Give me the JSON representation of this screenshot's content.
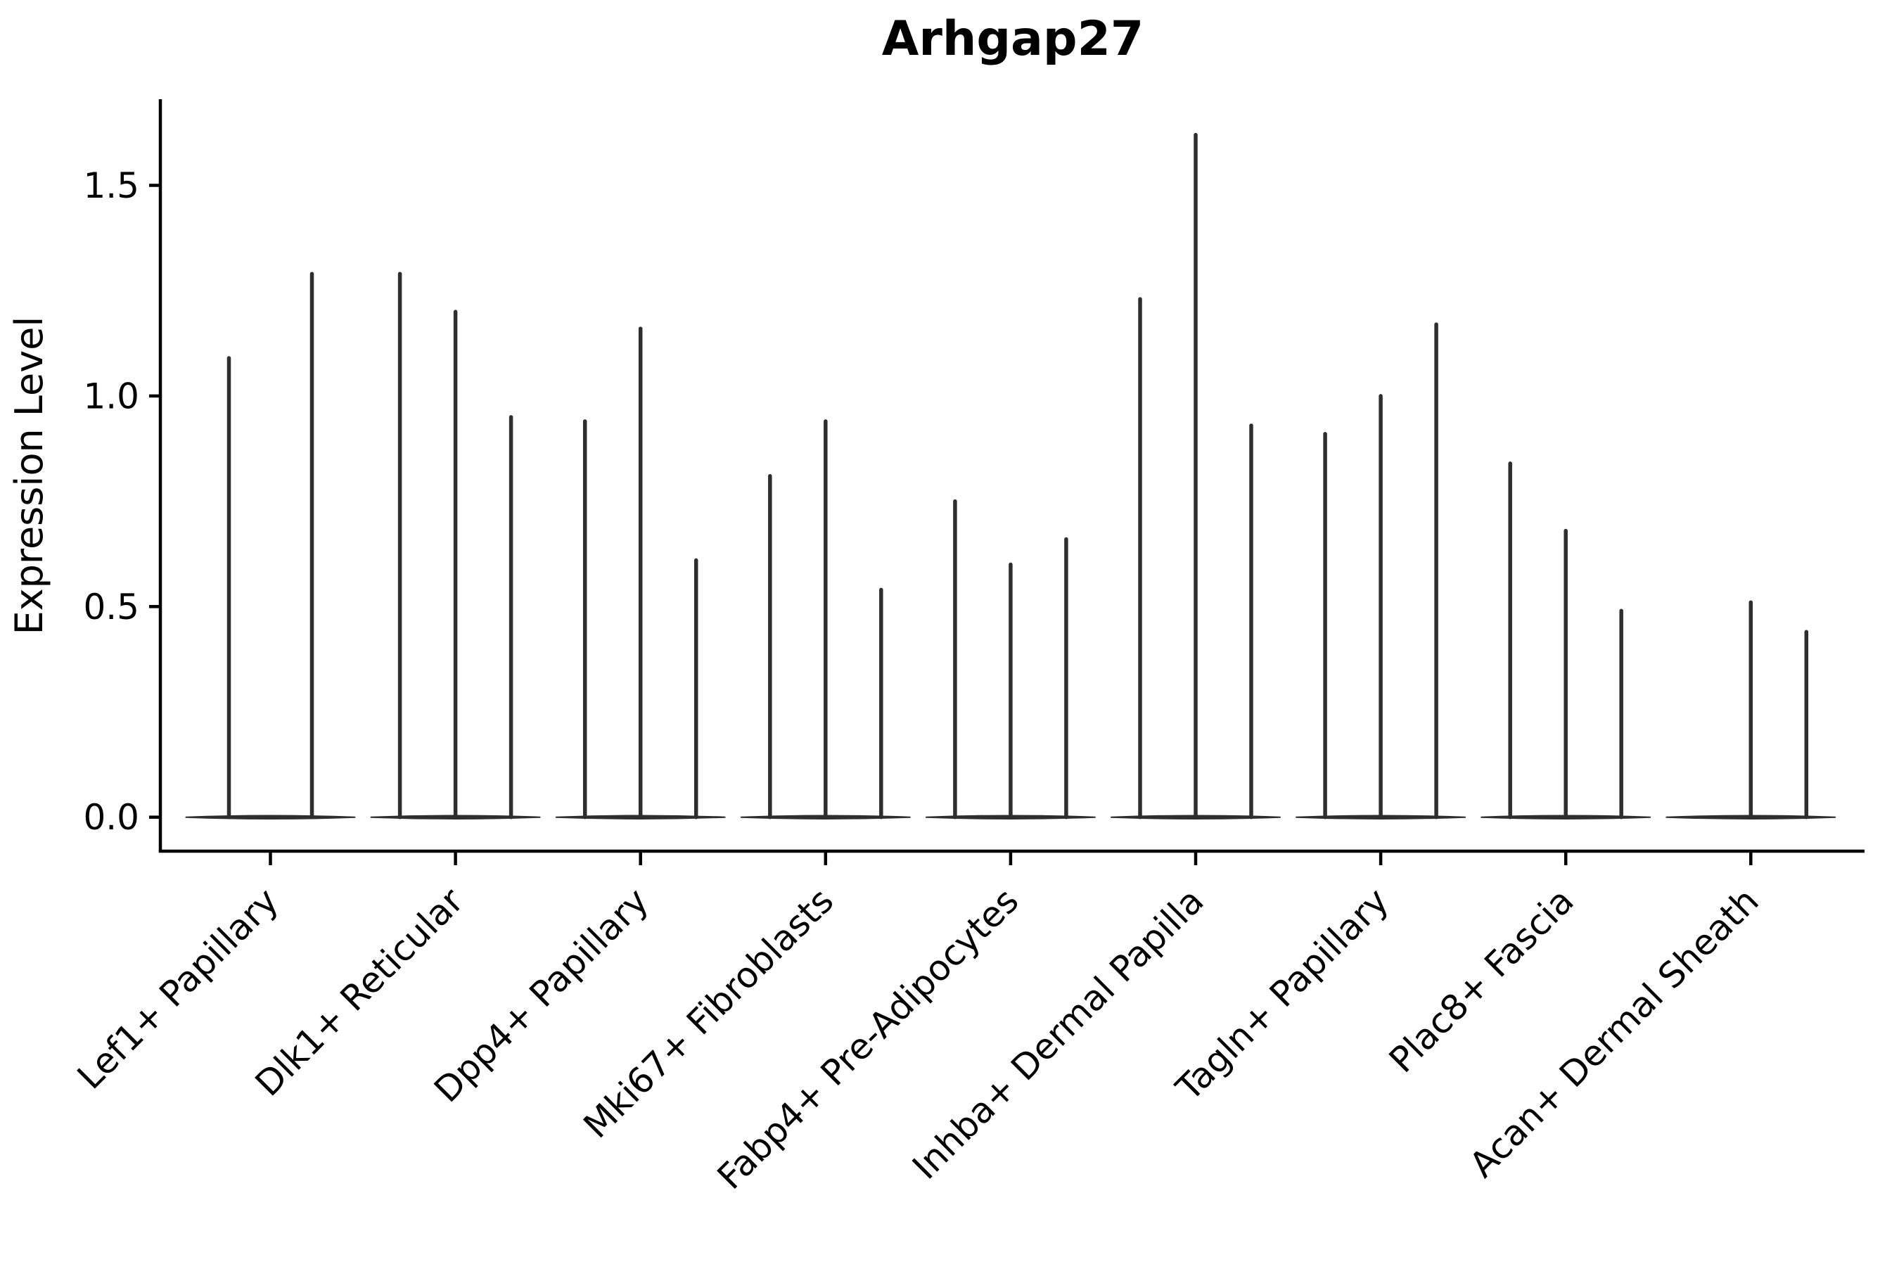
{
  "title": "Arhgap27",
  "ylabel": "Expression Level",
  "colors": {
    "violin": "#2e2e2e",
    "axis": "#000000",
    "background": "#ffffff"
  },
  "chart_data": {
    "type": "violin",
    "title": "Arhgap27",
    "xlabel": "",
    "ylabel": "Expression Level",
    "grid": false,
    "legend": "none",
    "ylim": [
      -0.08,
      1.69
    ],
    "yticks": [
      0.0,
      0.5,
      1.0,
      1.5
    ],
    "ytick_labels": [
      "0.0",
      "0.5",
      "1.0",
      "1.5"
    ],
    "description": "Stacked narrow violins per cell type; each violin is a dense mass at 0 expression with a thin spike reaching its maximum expression value",
    "categories": [
      "Lef1+ Papillary",
      "Dlk1+ Reticular",
      "Dpp4+ Papillary",
      "Mki67+ Fibroblasts",
      "Fabp4+ Pre-Adipocytes",
      "Inhba+ Dermal Papilla",
      "Tagln+ Papillary",
      "Plac8+ Fascia",
      "Acan+ Dermal Sheath"
    ],
    "groups": [
      {
        "category": "Lef1+ Papillary",
        "violin_maxima": [
          1.09,
          1.29
        ],
        "x_offsets": [
          -59,
          59
        ]
      },
      {
        "category": "Dlk1+ Reticular",
        "violin_maxima": [
          1.29,
          1.2,
          0.95
        ],
        "x_offsets": [
          -79,
          0,
          79
        ]
      },
      {
        "category": "Dpp4+ Papillary",
        "violin_maxima": [
          0.94,
          1.16,
          0.61
        ],
        "x_offsets": [
          -79,
          0,
          79
        ]
      },
      {
        "category": "Mki67+ Fibroblasts",
        "violin_maxima": [
          0.81,
          0.94,
          0.54
        ],
        "x_offsets": [
          -79,
          0,
          79
        ]
      },
      {
        "category": "Fabp4+ Pre-Adipocytes",
        "violin_maxima": [
          0.75,
          0.6,
          0.66
        ],
        "x_offsets": [
          -79,
          0,
          79
        ]
      },
      {
        "category": "Inhba+ Dermal Papilla",
        "violin_maxima": [
          1.23,
          1.62,
          0.93
        ],
        "x_offsets": [
          -79,
          0,
          79
        ]
      },
      {
        "category": "Tagln+ Papillary",
        "violin_maxima": [
          0.91,
          1.0,
          1.17
        ],
        "x_offsets": [
          -79,
          0,
          79
        ]
      },
      {
        "category": "Plac8+ Fascia",
        "violin_maxima": [
          0.84,
          0.68,
          0.49
        ],
        "x_offsets": [
          -79,
          0,
          79
        ]
      },
      {
        "category": "Acan+ Dermal Sheath",
        "violin_maxima": [
          0.51,
          0.44
        ],
        "x_offsets": [
          0,
          79
        ]
      }
    ]
  }
}
